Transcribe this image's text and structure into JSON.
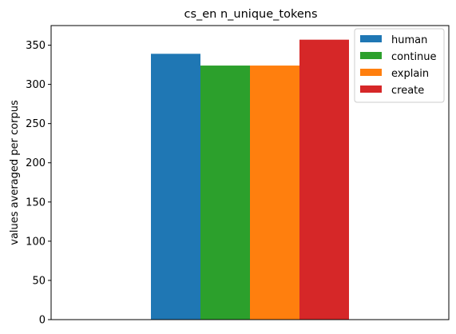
{
  "chart_data": {
    "type": "bar",
    "title": "cs_en n_unique_tokens",
    "xlabel": "",
    "ylabel": "values averaged per corpus",
    "categories": [
      ""
    ],
    "series": [
      {
        "name": "human",
        "values": [
          339
        ],
        "color": "#1f77b4"
      },
      {
        "name": "continue",
        "values": [
          324
        ],
        "color": "#2ca02c"
      },
      {
        "name": "explain",
        "values": [
          324
        ],
        "color": "#ff7f0e"
      },
      {
        "name": "create",
        "values": [
          357
        ],
        "color": "#d62728"
      }
    ],
    "ylim": [
      0,
      375
    ],
    "yticks": [
      0,
      50,
      100,
      150,
      200,
      250,
      300,
      350
    ],
    "grid": false,
    "legend_position": "top-right"
  }
}
